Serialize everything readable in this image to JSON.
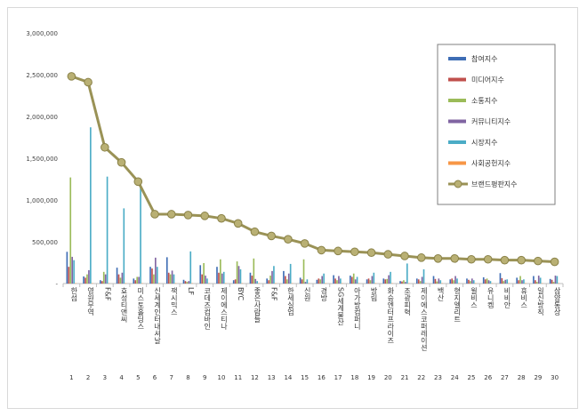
{
  "chart_data": {
    "type": "bar",
    "title": "",
    "xlabel": "",
    "ylabel": "",
    "ylim": [
      0,
      3000000
    ],
    "yticks": [
      "-",
      "500,000",
      "1,000,000",
      "1,500,000",
      "2,000,000",
      "2,500,000",
      "3,000,000"
    ],
    "grid": false,
    "legend_position": "right",
    "ranks": [
      "1",
      "2",
      "3",
      "4",
      "5",
      "6",
      "7",
      "8",
      "9",
      "10",
      "11",
      "12",
      "13",
      "14",
      "15",
      "16",
      "17",
      "18",
      "19",
      "20",
      "21",
      "22",
      "23",
      "24",
      "25",
      "26",
      "27",
      "28",
      "29",
      "30"
    ],
    "categories": [
      "한섬",
      "영원무역",
      "F&F",
      "효성티앤씨",
      "미스토홀딩스",
      "신세계인터내셔날",
      "잭시믹스",
      "LF",
      "코데즈컴바인",
      "제이에스티나",
      "BYC",
      "좋은사람들",
      "F&F",
      "한세실업",
      "신원",
      "경방",
      "SG세계물산",
      "아가방컴퍼니",
      "방림",
      "화승엔터프라이즈",
      "조광피혁",
      "제이에스코퍼레이션",
      "백산",
      "형지엘리트",
      "윌비스",
      "유니켐",
      "비비안",
      "휴비스",
      "일신방직",
      "삼양통상"
    ],
    "series": [
      {
        "name": "참여지수",
        "color": "#3e6db5",
        "values": [
          380000,
          85000,
          40000,
          190000,
          60000,
          200000,
          315000,
          45000,
          220000,
          200000,
          40000,
          130000,
          60000,
          150000,
          70000,
          45000,
          100000,
          95000,
          50000,
          60000,
          30000,
          60000,
          90000,
          50000,
          60000,
          75000,
          125000,
          70000,
          90000,
          55000
        ]
      },
      {
        "name": "미디어지수",
        "color": "#c0504d",
        "values": [
          200000,
          70000,
          30000,
          110000,
          40000,
          180000,
          130000,
          30000,
          110000,
          130000,
          50000,
          95000,
          40000,
          90000,
          50000,
          60000,
          60000,
          80000,
          60000,
          50000,
          25000,
          50000,
          55000,
          60000,
          45000,
          50000,
          65000,
          40000,
          40000,
          45000
        ]
      },
      {
        "name": "소통지수",
        "color": "#9bbb59",
        "values": [
          1270000,
          110000,
          140000,
          70000,
          80000,
          110000,
          110000,
          20000,
          245000,
          290000,
          265000,
          300000,
          95000,
          50000,
          290000,
          50000,
          40000,
          120000,
          40000,
          55000,
          40000,
          30000,
          25000,
          40000,
          30000,
          60000,
          30000,
          90000,
          20000,
          20000
        ]
      },
      {
        "name": "커뮤니티지수",
        "color": "#8064a2",
        "values": [
          320000,
          160000,
          110000,
          130000,
          80000,
          310000,
          155000,
          30000,
          95000,
          120000,
          210000,
          55000,
          150000,
          120000,
          20000,
          90000,
          90000,
          50000,
          90000,
          100000,
          20000,
          80000,
          60000,
          90000,
          60000,
          40000,
          45000,
          40000,
          95000,
          95000
        ]
      },
      {
        "name": "시장지수",
        "color": "#4bacc6",
        "values": [
          280000,
          1870000,
          1280000,
          900000,
          1180000,
          200000,
          110000,
          385000,
          60000,
          140000,
          170000,
          30000,
          210000,
          235000,
          50000,
          120000,
          60000,
          80000,
          130000,
          140000,
          240000,
          170000,
          40000,
          60000,
          40000,
          30000,
          50000,
          50000,
          70000,
          90000
        ]
      },
      {
        "name": "사회공헌지수",
        "color": "#f79646",
        "values": [
          5000,
          5000,
          5000,
          5000,
          5000,
          5000,
          5000,
          5000,
          5000,
          5000,
          5000,
          5000,
          5000,
          5000,
          5000,
          5000,
          5000,
          5000,
          5000,
          5000,
          5000,
          5000,
          5000,
          5000,
          5000,
          5000,
          5000,
          5000,
          5000,
          5000
        ]
      },
      {
        "name": "브랜드평판지수",
        "color": "#9a9256",
        "type": "line",
        "values": [
          2480000,
          2410000,
          1630000,
          1450000,
          1220000,
          830000,
          830000,
          820000,
          810000,
          780000,
          720000,
          620000,
          570000,
          530000,
          480000,
          400000,
          390000,
          380000,
          370000,
          350000,
          330000,
          310000,
          300000,
          300000,
          290000,
          290000,
          280000,
          280000,
          270000,
          260000
        ]
      }
    ]
  }
}
